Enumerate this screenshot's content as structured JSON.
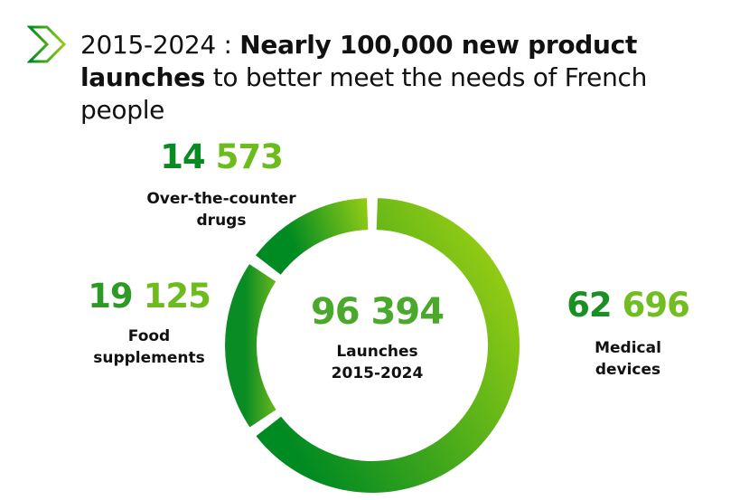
{
  "header": {
    "icon": "chevron-right-outline-icon",
    "title_prefix": "2015-2024 : ",
    "title_bold": "Nearly 100,000 new product launches",
    "title_rest": " to better meet the needs of French people"
  },
  "colors": {
    "dark_green": "#008a22",
    "mid_green": "#4aab2a",
    "light_green": "#95cc14",
    "text": "#111111"
  },
  "chart_data": {
    "type": "pie",
    "variant": "donut",
    "title": "2015-2024 : Nearly 100,000 new product launches to better meet the needs of French people",
    "center": {
      "value": "96 394",
      "label_line1": "Launches",
      "label_line2": "2015-2024"
    },
    "total": 96394,
    "slices": [
      {
        "name": "Medical devices",
        "value": 62696,
        "display": "62 696",
        "label_line1": "Medical",
        "label_line2": "devices",
        "num_part1": "62",
        "num_part2": "696"
      },
      {
        "name": "Food supplements",
        "value": 19125,
        "display": "19 125",
        "label_line1": "Food",
        "label_line2": "supplements",
        "num_part1": "19",
        "num_part2": "125"
      },
      {
        "name": "Over-the-counter drugs",
        "value": 14573,
        "display": "14 573",
        "label_line1": "Over-the-counter",
        "label_line2": "drugs",
        "num_part1": "14",
        "num_part2": "573"
      }
    ],
    "legend": "none",
    "grid": false
  }
}
